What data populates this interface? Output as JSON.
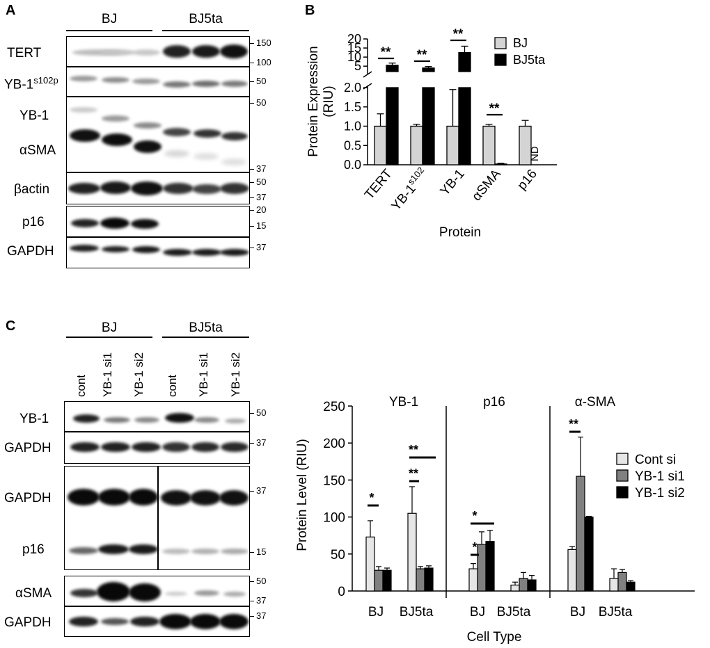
{
  "panels": {
    "a": "A",
    "b": "B",
    "c": "C"
  },
  "panelA": {
    "groups": [
      "BJ",
      "BJ5ta"
    ],
    "rows": [
      {
        "label": "TERT"
      },
      {
        "label": "YB-1",
        "sup": "s102p"
      },
      {
        "label": "YB-1"
      },
      {
        "label": "αSMA"
      },
      {
        "label": "βactin"
      },
      {
        "label": "p16"
      },
      {
        "label": "GAPDH"
      }
    ],
    "markers": [
      "150",
      "100",
      "50",
      "50",
      "37",
      "50",
      "37",
      "20",
      "15",
      "37"
    ]
  },
  "panelC": {
    "groups": [
      "BJ",
      "BJ5ta"
    ],
    "lanes": [
      "cont",
      "YB-1 si1",
      "YB-1 si2",
      "cont",
      "YB-1 si1",
      "YB-1 si2"
    ],
    "rows": [
      {
        "label": "YB-1"
      },
      {
        "label": "GAPDH"
      },
      {
        "label": "GAPDH"
      },
      {
        "label": "p16"
      },
      {
        "label": "αSMA"
      },
      {
        "label": "GAPDH"
      }
    ],
    "markers": [
      "50",
      "37",
      "37",
      "15",
      "50",
      "37",
      "37"
    ]
  },
  "chart_data": [
    {
      "type": "bar",
      "categories": [
        "TERT",
        "YB-1s102",
        "YB-1",
        "αSMA",
        "p16"
      ],
      "series": [
        {
          "name": "BJ",
          "values": [
            1.0,
            1.0,
            1.0,
            1.0,
            1.0
          ],
          "errors": [
            0.32,
            0.05,
            0.95,
            0.05,
            0.15
          ]
        },
        {
          "name": "BJ5ta",
          "values": [
            5.5,
            4.0,
            12.5,
            0.02,
            null
          ],
          "errors": [
            1.2,
            0.8,
            3.5,
            0.02,
            null
          ]
        }
      ],
      "xlabel": "Protein",
      "ylabel": "Protein Expression (RIU)",
      "yticks_lower": [
        "0.0",
        "0.5",
        "1.0",
        "1.5",
        "2.0"
      ],
      "yticks_upper": [
        "5",
        "10",
        "15",
        "20"
      ],
      "ylim_lower": [
        0,
        2
      ],
      "ylim_upper": [
        2,
        20
      ],
      "significance": [
        "**",
        "**",
        "**",
        "**"
      ],
      "nd_label": "ND",
      "colors": {
        "BJ": "#d4d4d4",
        "BJ5ta": "#000000"
      }
    },
    {
      "type": "bar",
      "panels": [
        "YB-1",
        "p16",
        "α-SMA"
      ],
      "categories": [
        "BJ",
        "BJ5ta"
      ],
      "series": [
        {
          "name": "Cont si",
          "color": "#e6e6e6"
        },
        {
          "name": "YB-1 si1",
          "color": "#808080"
        },
        {
          "name": "YB-1 si2",
          "color": "#000000"
        }
      ],
      "values": {
        "YB-1": {
          "BJ": [
            73,
            28,
            28
          ],
          "BJ5ta": [
            105,
            30,
            31
          ]
        },
        "p16": {
          "BJ": [
            30,
            63,
            67
          ],
          "BJ5ta": [
            8,
            17,
            15
          ]
        },
        "α-SMA": {
          "BJ": [
            56,
            155,
            100
          ],
          "BJ5ta": [
            17,
            25,
            12
          ]
        }
      },
      "errors": {
        "YB-1": {
          "BJ": [
            22,
            5,
            3
          ],
          "BJ5ta": [
            36,
            3,
            3
          ]
        },
        "p16": {
          "BJ": [
            7,
            17,
            15
          ],
          "BJ5ta": [
            4,
            8,
            6
          ]
        },
        "α-SMA": {
          "BJ": [
            4,
            53,
            1
          ],
          "BJ5ta": [
            13,
            4,
            2
          ]
        }
      },
      "ylim": [
        0,
        250
      ],
      "yticks": [
        "0",
        "50",
        "100",
        "150",
        "200",
        "250"
      ],
      "xlabel": "Cell Type",
      "ylabel": "Protein Level (RIU)",
      "significance": [
        "*",
        "**",
        "**",
        "*",
        "*",
        "**"
      ]
    }
  ]
}
